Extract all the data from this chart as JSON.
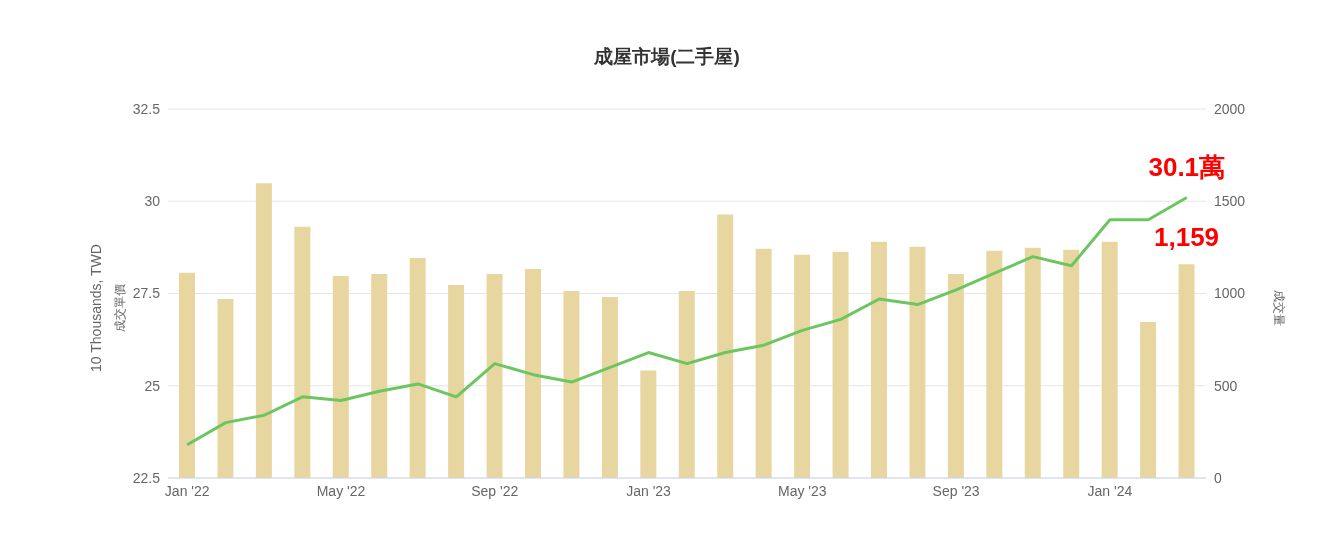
{
  "chart_data": {
    "type": "bar",
    "title": "成屋市場(二手屋)",
    "categories": [
      "Jan '22",
      null,
      null,
      null,
      "May '22",
      null,
      null,
      null,
      "Sep '22",
      null,
      null,
      null,
      "Jan '23",
      null,
      null,
      null,
      "May '23",
      null,
      null,
      null,
      "Sep '23",
      null,
      null,
      null,
      "Jan '24",
      null,
      null
    ],
    "series": [
      {
        "axis": "y2",
        "color": "#e8d6a0",
        "values": [
          1112,
          970,
          1597,
          1362,
          1095,
          1106,
          1193,
          1046,
          1106,
          1133,
          1014,
          981,
          583,
          1014,
          1428,
          1243,
          1210,
          1226,
          1281,
          1253,
          1106,
          1232,
          1248,
          1237,
          1281,
          845,
          1159
        ]
      },
      {
        "type": "line",
        "axis": "y",
        "color": "#6cc65f",
        "values": [
          23.4,
          24.0,
          24.2,
          24.7,
          24.6,
          24.85,
          25.05,
          24.7,
          25.6,
          25.3,
          25.1,
          25.5,
          25.9,
          25.6,
          25.9,
          26.1,
          26.5,
          26.8,
          27.35,
          27.2,
          27.6,
          28.05,
          28.5,
          28.25,
          29.5,
          29.5,
          30.1
        ]
      }
    ],
    "ylabel": "10 Thousands, TWD",
    "y2label": "成交量",
    "annotations": [
      "成交單價",
      "30.1萬",
      "1,159"
    ],
    "ylim": [
      22.5,
      32.5
    ],
    "yticks": [
      22.5,
      25,
      27.5,
      30,
      32.5
    ],
    "y2lim": [
      0,
      2000
    ],
    "y2ticks": [
      0,
      500,
      1000,
      1500,
      2000
    ],
    "grid": "y",
    "marker": "none",
    "legend": false
  }
}
